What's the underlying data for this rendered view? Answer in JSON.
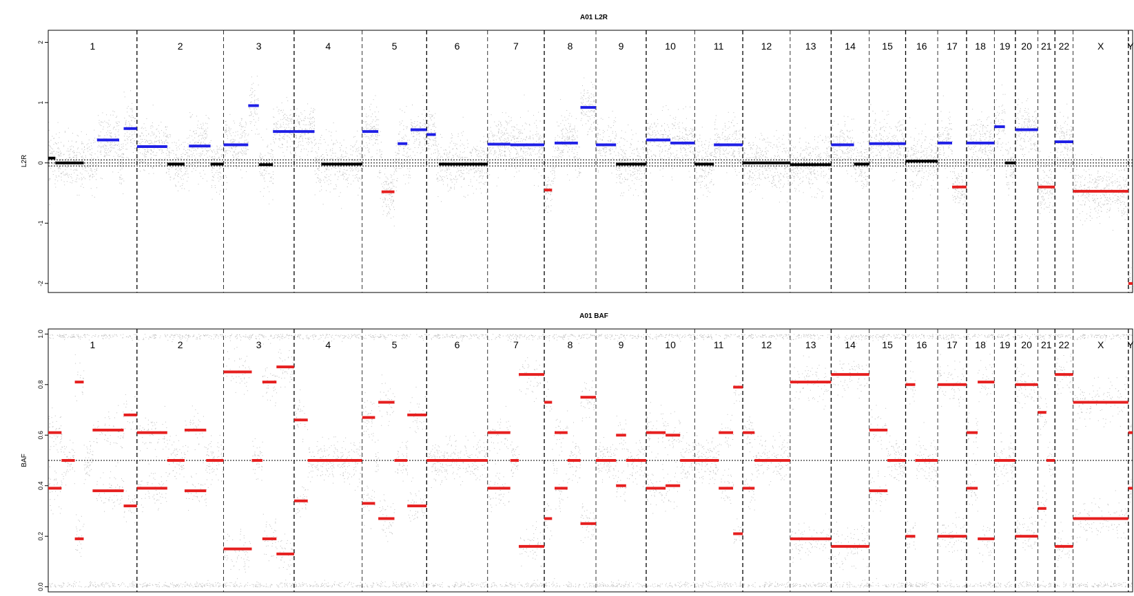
{
  "chart_data": [
    {
      "type": "scatter",
      "title": "A01 L2R",
      "ylabel": "L2R",
      "ylim": [
        -2.15,
        2.2
      ],
      "yticks": [
        2,
        1,
        0,
        -1,
        -2
      ],
      "ytick_labels": [
        "2",
        "1",
        "0",
        "-1",
        "-2"
      ],
      "reference_lines": [
        0,
        0.05,
        -0.05
      ],
      "point_colors": {
        "probes": "#888888",
        "neutral": "#000000",
        "gain": "#1f1fe6",
        "loss": "#e61f1f"
      },
      "segments": [
        {
          "chr": "1",
          "from": 0.0,
          "to": 0.08,
          "value": 0.08,
          "status": "neutral"
        },
        {
          "chr": "1",
          "from": 0.08,
          "to": 0.4,
          "value": 0.0,
          "status": "neutral"
        },
        {
          "chr": "1",
          "from": 0.55,
          "to": 0.8,
          "value": 0.38,
          "status": "gain"
        },
        {
          "chr": "1",
          "from": 0.85,
          "to": 1.0,
          "value": 0.57,
          "status": "gain"
        },
        {
          "chr": "2",
          "from": 0.0,
          "to": 0.35,
          "value": 0.27,
          "status": "gain"
        },
        {
          "chr": "2",
          "from": 0.35,
          "to": 0.55,
          "value": -0.02,
          "status": "neutral"
        },
        {
          "chr": "2",
          "from": 0.6,
          "to": 0.85,
          "value": 0.28,
          "status": "gain"
        },
        {
          "chr": "2",
          "from": 0.85,
          "to": 1.0,
          "value": -0.02,
          "status": "neutral"
        },
        {
          "chr": "3",
          "from": 0.0,
          "to": 0.35,
          "value": 0.3,
          "status": "gain"
        },
        {
          "chr": "3",
          "from": 0.35,
          "to": 0.5,
          "value": 0.95,
          "status": "gain"
        },
        {
          "chr": "3",
          "from": 0.5,
          "to": 0.7,
          "value": -0.03,
          "status": "neutral"
        },
        {
          "chr": "3",
          "from": 0.7,
          "to": 1.0,
          "value": 0.52,
          "status": "gain"
        },
        {
          "chr": "4",
          "from": 0.0,
          "to": 0.3,
          "value": 0.52,
          "status": "gain"
        },
        {
          "chr": "4",
          "from": 0.4,
          "to": 1.0,
          "value": -0.02,
          "status": "neutral"
        },
        {
          "chr": "5",
          "from": 0.0,
          "to": 0.25,
          "value": 0.52,
          "status": "gain"
        },
        {
          "chr": "5",
          "from": 0.3,
          "to": 0.5,
          "value": -0.48,
          "status": "loss"
        },
        {
          "chr": "5",
          "from": 0.55,
          "to": 0.7,
          "value": 0.32,
          "status": "gain"
        },
        {
          "chr": "5",
          "from": 0.75,
          "to": 1.0,
          "value": 0.55,
          "status": "gain"
        },
        {
          "chr": "6",
          "from": 0.0,
          "to": 0.15,
          "value": 0.47,
          "status": "gain"
        },
        {
          "chr": "6",
          "from": 0.2,
          "to": 1.0,
          "value": -0.02,
          "status": "neutral"
        },
        {
          "chr": "7",
          "from": 0.0,
          "to": 0.4,
          "value": 0.31,
          "status": "gain"
        },
        {
          "chr": "7",
          "from": 0.4,
          "to": 1.0,
          "value": 0.3,
          "status": "gain"
        },
        {
          "chr": "8",
          "from": 0.0,
          "to": 0.15,
          "value": -0.45,
          "status": "loss"
        },
        {
          "chr": "8",
          "from": 0.2,
          "to": 0.65,
          "value": 0.33,
          "status": "gain"
        },
        {
          "chr": "8",
          "from": 0.7,
          "to": 1.0,
          "value": 0.92,
          "status": "gain"
        },
        {
          "chr": "9",
          "from": 0.0,
          "to": 0.4,
          "value": 0.3,
          "status": "gain"
        },
        {
          "chr": "9",
          "from": 0.4,
          "to": 1.0,
          "value": -0.02,
          "status": "neutral"
        },
        {
          "chr": "10",
          "from": 0.0,
          "to": 0.5,
          "value": 0.38,
          "status": "gain"
        },
        {
          "chr": "10",
          "from": 0.5,
          "to": 1.0,
          "value": 0.33,
          "status": "gain"
        },
        {
          "chr": "11",
          "from": 0.0,
          "to": 0.4,
          "value": -0.02,
          "status": "neutral"
        },
        {
          "chr": "11",
          "from": 0.4,
          "to": 1.0,
          "value": 0.3,
          "status": "gain"
        },
        {
          "chr": "12",
          "from": 0.0,
          "to": 1.0,
          "value": 0.0,
          "status": "neutral"
        },
        {
          "chr": "13",
          "from": 0.0,
          "to": 1.0,
          "value": -0.03,
          "status": "neutral"
        },
        {
          "chr": "14",
          "from": 0.0,
          "to": 0.6,
          "value": 0.3,
          "status": "gain"
        },
        {
          "chr": "14",
          "from": 0.6,
          "to": 1.0,
          "value": -0.02,
          "status": "neutral"
        },
        {
          "chr": "15",
          "from": 0.0,
          "to": 1.0,
          "value": 0.32,
          "status": "gain"
        },
        {
          "chr": "16",
          "from": 0.0,
          "to": 1.0,
          "value": 0.03,
          "status": "neutral"
        },
        {
          "chr": "17",
          "from": 0.0,
          "to": 0.5,
          "value": 0.33,
          "status": "gain"
        },
        {
          "chr": "17",
          "from": 0.5,
          "to": 1.0,
          "value": -0.4,
          "status": "loss"
        },
        {
          "chr": "18",
          "from": 0.0,
          "to": 1.0,
          "value": 0.33,
          "status": "gain"
        },
        {
          "chr": "19",
          "from": 0.0,
          "to": 0.5,
          "value": 0.6,
          "status": "gain"
        },
        {
          "chr": "19",
          "from": 0.5,
          "to": 1.0,
          "value": 0.0,
          "status": "neutral"
        },
        {
          "chr": "20",
          "from": 0.0,
          "to": 1.0,
          "value": 0.55,
          "status": "gain"
        },
        {
          "chr": "21",
          "from": 0.0,
          "to": 1.0,
          "value": -0.4,
          "status": "loss"
        },
        {
          "chr": "22",
          "from": 0.0,
          "to": 1.0,
          "value": 0.35,
          "status": "gain"
        },
        {
          "chr": "X",
          "from": 0.0,
          "to": 1.0,
          "value": -0.47,
          "status": "loss"
        },
        {
          "chr": "Y",
          "from": 0.0,
          "to": 1.0,
          "value": -2.0,
          "status": "loss"
        }
      ]
    },
    {
      "type": "scatter",
      "title": "A01 BAF",
      "ylabel": "BAF",
      "ylim": [
        -0.02,
        1.02
      ],
      "yticks": [
        1.0,
        0.8,
        0.6,
        0.4,
        0.2,
        0.0
      ],
      "ytick_labels": [
        "1.0",
        "0.8",
        "0.6",
        "0.4",
        "0.2",
        "0.0"
      ],
      "reference_lines": [
        0.5
      ],
      "point_colors": {
        "probes": "#888888",
        "segments": "#e61f1f"
      },
      "segments": [
        {
          "chr": "1",
          "from": 0.0,
          "to": 0.15,
          "values": [
            0.39,
            0.61
          ]
        },
        {
          "chr": "1",
          "from": 0.15,
          "to": 0.3,
          "values": [
            0.5
          ]
        },
        {
          "chr": "1",
          "from": 0.3,
          "to": 0.4,
          "values": [
            0.19,
            0.81
          ]
        },
        {
          "chr": "1",
          "from": 0.5,
          "to": 0.85,
          "values": [
            0.38,
            0.62
          ]
        },
        {
          "chr": "1",
          "from": 0.85,
          "to": 1.0,
          "values": [
            0.32,
            0.68
          ]
        },
        {
          "chr": "2",
          "from": 0.0,
          "to": 0.35,
          "values": [
            0.39,
            0.61
          ]
        },
        {
          "chr": "2",
          "from": 0.35,
          "to": 0.55,
          "values": [
            0.5
          ]
        },
        {
          "chr": "2",
          "from": 0.55,
          "to": 0.8,
          "values": [
            0.38,
            0.62
          ]
        },
        {
          "chr": "2",
          "from": 0.8,
          "to": 1.0,
          "values": [
            0.5
          ]
        },
        {
          "chr": "3",
          "from": 0.0,
          "to": 0.4,
          "values": [
            0.15,
            0.85
          ]
        },
        {
          "chr": "3",
          "from": 0.4,
          "to": 0.55,
          "values": [
            0.5
          ]
        },
        {
          "chr": "3",
          "from": 0.55,
          "to": 0.75,
          "values": [
            0.19,
            0.81
          ]
        },
        {
          "chr": "3",
          "from": 0.75,
          "to": 1.0,
          "values": [
            0.13,
            0.87
          ]
        },
        {
          "chr": "4",
          "from": 0.0,
          "to": 0.2,
          "values": [
            0.34,
            0.66
          ]
        },
        {
          "chr": "4",
          "from": 0.2,
          "to": 1.0,
          "values": [
            0.5
          ]
        },
        {
          "chr": "5",
          "from": 0.0,
          "to": 0.2,
          "values": [
            0.33,
            0.67
          ]
        },
        {
          "chr": "5",
          "from": 0.25,
          "to": 0.5,
          "values": [
            0.27,
            0.73
          ]
        },
        {
          "chr": "5",
          "from": 0.5,
          "to": 0.7,
          "values": [
            0.5
          ]
        },
        {
          "chr": "5",
          "from": 0.7,
          "to": 1.0,
          "values": [
            0.32,
            0.68
          ]
        },
        {
          "chr": "6",
          "from": 0.0,
          "to": 1.0,
          "values": [
            0.5
          ]
        },
        {
          "chr": "7",
          "from": 0.0,
          "to": 0.4,
          "values": [
            0.39,
            0.61
          ]
        },
        {
          "chr": "7",
          "from": 0.4,
          "to": 0.55,
          "values": [
            0.5
          ]
        },
        {
          "chr": "7",
          "from": 0.55,
          "to": 1.0,
          "values": [
            0.16,
            0.84
          ]
        },
        {
          "chr": "8",
          "from": 0.0,
          "to": 0.15,
          "values": [
            0.27,
            0.73
          ]
        },
        {
          "chr": "8",
          "from": 0.2,
          "to": 0.45,
          "values": [
            0.39,
            0.61
          ]
        },
        {
          "chr": "8",
          "from": 0.45,
          "to": 0.7,
          "values": [
            0.5
          ]
        },
        {
          "chr": "8",
          "from": 0.7,
          "to": 1.0,
          "values": [
            0.25,
            0.75
          ]
        },
        {
          "chr": "9",
          "from": 0.0,
          "to": 0.4,
          "values": [
            0.5
          ]
        },
        {
          "chr": "9",
          "from": 0.4,
          "to": 0.6,
          "values": [
            0.4,
            0.6
          ]
        },
        {
          "chr": "9",
          "from": 0.6,
          "to": 1.0,
          "values": [
            0.5
          ]
        },
        {
          "chr": "10",
          "from": 0.0,
          "to": 0.4,
          "values": [
            0.39,
            0.61
          ]
        },
        {
          "chr": "10",
          "from": 0.4,
          "to": 0.7,
          "values": [
            0.4,
            0.6
          ]
        },
        {
          "chr": "10",
          "from": 0.7,
          "to": 1.0,
          "values": [
            0.5
          ]
        },
        {
          "chr": "11",
          "from": 0.0,
          "to": 0.5,
          "values": [
            0.5
          ]
        },
        {
          "chr": "11",
          "from": 0.5,
          "to": 0.8,
          "values": [
            0.39,
            0.61
          ]
        },
        {
          "chr": "11",
          "from": 0.8,
          "to": 1.0,
          "values": [
            0.21,
            0.79
          ]
        },
        {
          "chr": "12",
          "from": 0.0,
          "to": 0.25,
          "values": [
            0.39,
            0.61
          ]
        },
        {
          "chr": "12",
          "from": 0.25,
          "to": 1.0,
          "values": [
            0.5
          ]
        },
        {
          "chr": "13",
          "from": 0.0,
          "to": 1.0,
          "values": [
            0.19,
            0.81
          ]
        },
        {
          "chr": "14",
          "from": 0.0,
          "to": 1.0,
          "values": [
            0.16,
            0.84
          ]
        },
        {
          "chr": "15",
          "from": 0.0,
          "to": 0.5,
          "values": [
            0.38,
            0.62
          ]
        },
        {
          "chr": "15",
          "from": 0.5,
          "to": 1.0,
          "values": [
            0.5
          ]
        },
        {
          "chr": "16",
          "from": 0.0,
          "to": 0.3,
          "values": [
            0.2,
            0.8
          ]
        },
        {
          "chr": "16",
          "from": 0.3,
          "to": 1.0,
          "values": [
            0.5
          ]
        },
        {
          "chr": "17",
          "from": 0.0,
          "to": 1.0,
          "values": [
            0.2,
            0.8
          ]
        },
        {
          "chr": "18",
          "from": 0.0,
          "to": 0.4,
          "values": [
            0.39,
            0.61
          ]
        },
        {
          "chr": "18",
          "from": 0.4,
          "to": 1.0,
          "values": [
            0.19,
            0.81
          ]
        },
        {
          "chr": "19",
          "from": 0.0,
          "to": 1.0,
          "values": [
            0.5
          ]
        },
        {
          "chr": "20",
          "from": 0.0,
          "to": 1.0,
          "values": [
            0.2,
            0.8
          ]
        },
        {
          "chr": "21",
          "from": 0.0,
          "to": 0.5,
          "values": [
            0.31,
            0.69
          ]
        },
        {
          "chr": "21",
          "from": 0.5,
          "to": 1.0,
          "values": [
            0.5
          ]
        },
        {
          "chr": "22",
          "from": 0.0,
          "to": 1.0,
          "values": [
            0.16,
            0.84
          ]
        },
        {
          "chr": "X",
          "from": 0.0,
          "to": 1.0,
          "values": [
            0.27,
            0.73
          ]
        },
        {
          "chr": "Y",
          "from": 0.0,
          "to": 1.0,
          "values": [
            0.39,
            0.61
          ]
        }
      ]
    }
  ],
  "chromosomes": [
    {
      "label": "1",
      "length": 249
    },
    {
      "label": "2",
      "length": 243
    },
    {
      "label": "3",
      "length": 198
    },
    {
      "label": "4",
      "length": 191
    },
    {
      "label": "5",
      "length": 181
    },
    {
      "label": "6",
      "length": 171
    },
    {
      "label": "7",
      "length": 159
    },
    {
      "label": "8",
      "length": 145
    },
    {
      "label": "9",
      "length": 141
    },
    {
      "label": "10",
      "length": 136
    },
    {
      "label": "11",
      "length": 135
    },
    {
      "label": "12",
      "length": 133
    },
    {
      "label": "13",
      "length": 115
    },
    {
      "label": "14",
      "length": 107
    },
    {
      "label": "15",
      "length": 102
    },
    {
      "label": "16",
      "length": 90
    },
    {
      "label": "17",
      "length": 81
    },
    {
      "label": "18",
      "length": 78
    },
    {
      "label": "19",
      "length": 59
    },
    {
      "label": "20",
      "length": 63
    },
    {
      "label": "21",
      "length": 48
    },
    {
      "label": "22",
      "length": 51
    },
    {
      "label": "X",
      "length": 155
    },
    {
      "label": "Y",
      "length": 12
    }
  ]
}
